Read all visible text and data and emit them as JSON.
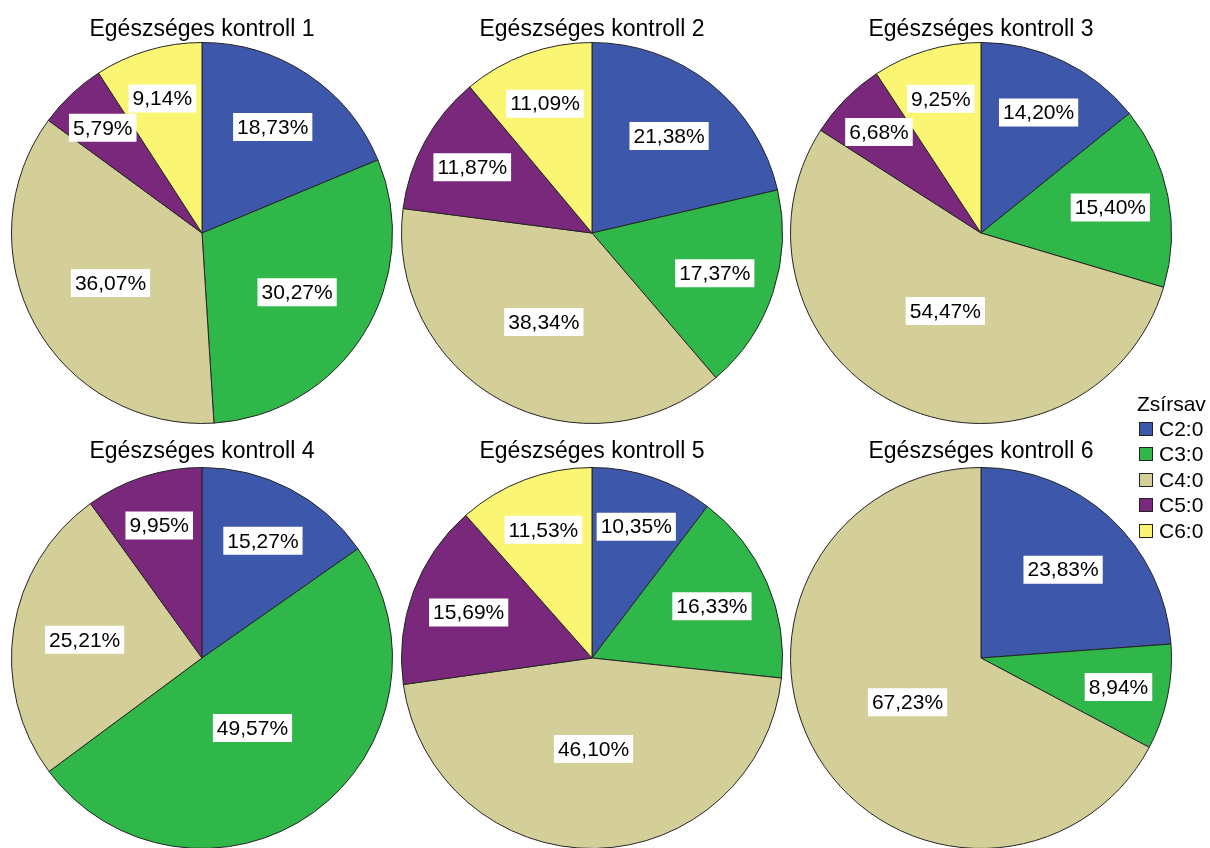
{
  "chart_data": [
    {
      "type": "pie",
      "title": "Egészséges kontroll 1",
      "categories": [
        null,
        null,
        null,
        null,
        null
      ],
      "values": [
        18.73,
        30.27,
        36.07,
        5.79,
        9.14
      ],
      "colors": [
        "#3d58aa",
        "#2fb749",
        "#d4ce98",
        "#7a287b",
        "#faf674"
      ],
      "value_labels": [
        "18,73%",
        "30,27%",
        "36,07%",
        "5,79%",
        "9,14%"
      ]
    },
    {
      "type": "pie",
      "title": "Egészséges kontroll 2",
      "categories": [
        null,
        null,
        null,
        null,
        null
      ],
      "values": [
        21.38,
        17.37,
        38.34,
        11.87,
        11.09
      ],
      "colors": [
        "#3d58aa",
        "#2fb749",
        "#d4ce98",
        "#7a287b",
        "#faf674"
      ],
      "value_labels": [
        "21,38%",
        "17,37%",
        "38,34%",
        "11,87%",
        "11,09%"
      ]
    },
    {
      "type": "pie",
      "title": "Egészséges kontroll 3",
      "categories": [
        "C2:0",
        "C3:0",
        "C4:0",
        "C5:0",
        "C6:0"
      ],
      "values": [
        14.2,
        15.4,
        54.47,
        6.68,
        9.25
      ],
      "colors": [
        "#3d58aa",
        "#2fb749",
        "#d4ce98",
        "#7a287b",
        "#faf674"
      ],
      "value_labels": [
        "14,20%",
        "15,40%",
        "54,47%",
        "6,68%",
        "9,25%"
      ],
      "legend": "bottom right",
      "legend_title": "Zsírsav"
    },
    {
      "type": "pie",
      "title": "Egészséges kontroll 4",
      "categories": [
        null,
        null,
        null,
        null
      ],
      "values": [
        15.27,
        49.57,
        25.21,
        9.95
      ],
      "colors": [
        "#3d58aa",
        "#2fb749",
        "#d4ce98",
        "#7a287b"
      ],
      "value_labels": [
        "15,27%",
        "49,57%",
        "25,21%",
        "9,95%"
      ]
    },
    {
      "type": "pie",
      "title": "Egészséges kontroll 5",
      "categories": [
        null,
        null,
        null,
        null,
        null
      ],
      "values": [
        10.35,
        16.33,
        46.1,
        15.69,
        11.53
      ],
      "colors": [
        "#3d58aa",
        "#2fb749",
        "#d4ce98",
        "#7a287b",
        "#faf674"
      ],
      "value_labels": [
        "10,35%",
        "16,33%",
        "46,10%",
        "15,69%",
        "11,53%"
      ]
    },
    {
      "type": "pie",
      "title": "Egészséges kontroll 6",
      "categories": [
        null,
        null,
        null
      ],
      "values": [
        23.83,
        8.94,
        67.23
      ],
      "colors": [
        "#3d58aa",
        "#2fb749",
        "#d4ce98"
      ],
      "value_labels": [
        "23,83%",
        "8,94%",
        "67,23%"
      ]
    }
  ]
}
